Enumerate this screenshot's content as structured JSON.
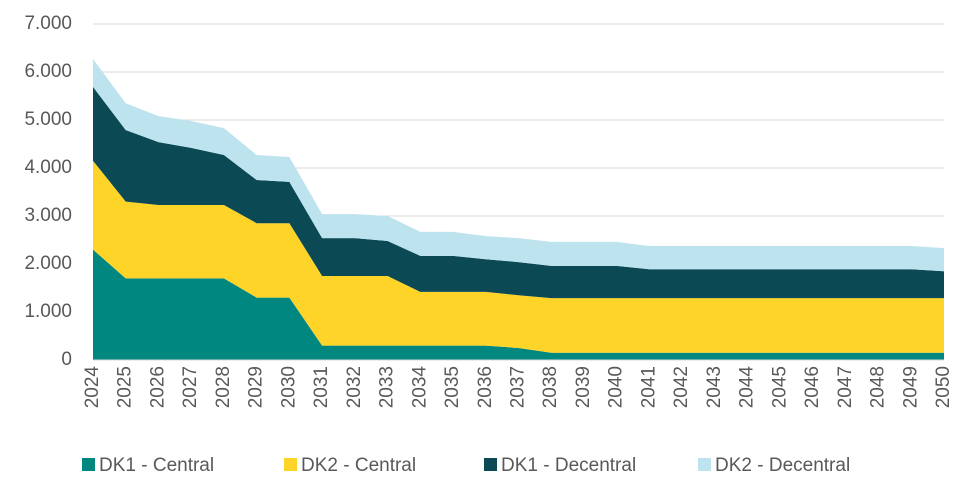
{
  "chart_data": {
    "type": "stacked_area",
    "categories": [
      "2024",
      "2025",
      "2026",
      "2027",
      "2028",
      "2029",
      "2030",
      "2031",
      "2032",
      "2033",
      "2034",
      "2035",
      "2036",
      "2037",
      "2038",
      "2039",
      "2040",
      "2041",
      "2042",
      "2043",
      "2044",
      "2045",
      "2046",
      "2047",
      "2048",
      "2049",
      "2050"
    ],
    "series": [
      {
        "name": "DK1 - Central",
        "color": "#00877f",
        "values": [
          2300,
          1700,
          1700,
          1700,
          1700,
          1300,
          1300,
          300,
          300,
          300,
          300,
          300,
          300,
          250,
          150,
          150,
          150,
          150,
          150,
          150,
          150,
          150,
          150,
          150,
          150,
          150,
          150
        ]
      },
      {
        "name": "DK2 - Central",
        "color": "#fed428",
        "values": [
          1850,
          1600,
          1530,
          1530,
          1530,
          1550,
          1550,
          1450,
          1450,
          1450,
          1120,
          1120,
          1120,
          1100,
          1140,
          1140,
          1140,
          1140,
          1140,
          1140,
          1140,
          1140,
          1140,
          1140,
          1140,
          1140,
          1140
        ]
      },
      {
        "name": "DK1 - Decentral",
        "color": "#0b4a55",
        "values": [
          1540,
          1490,
          1310,
          1190,
          1040,
          900,
          860,
          790,
          790,
          730,
          750,
          750,
          680,
          690,
          670,
          670,
          670,
          600,
          600,
          600,
          600,
          600,
          600,
          600,
          600,
          600,
          560
        ]
      },
      {
        "name": "DK2 - Decentral",
        "color": "#bde3ef",
        "values": [
          580,
          560,
          540,
          560,
          560,
          520,
          520,
          500,
          500,
          520,
          500,
          500,
          480,
          500,
          500,
          500,
          500,
          485,
          485,
          485,
          485,
          485,
          485,
          485,
          485,
          485,
          480
        ]
      }
    ],
    "ylim": [
      0,
      7000
    ],
    "yticks": [
      0,
      {
        "value": 1000,
        "label": "1.000"
      },
      {
        "value": 2000,
        "label": "2.000"
      },
      {
        "value": 3000,
        "label": "3.000"
      },
      {
        "value": 4000,
        "label": "4.000"
      },
      {
        "value": 5000,
        "label": "5.000"
      },
      {
        "value": 6000,
        "label": "6.000"
      },
      {
        "value": 7000,
        "label": "7.000"
      }
    ],
    "grid": true,
    "legend": "bottom"
  }
}
